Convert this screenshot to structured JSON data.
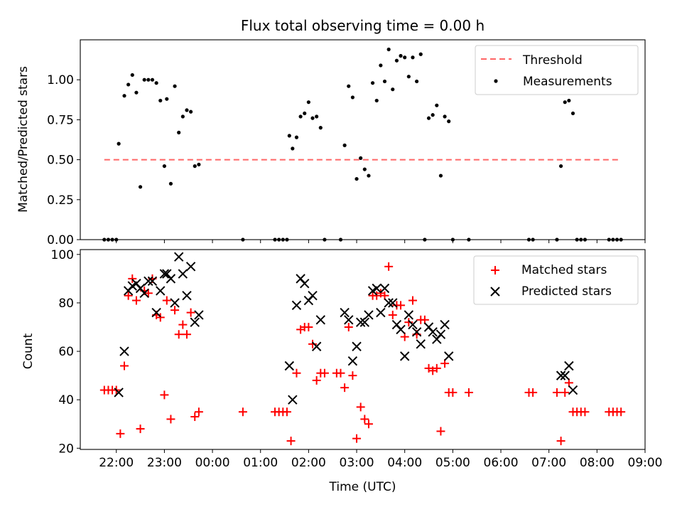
{
  "chart_data": [
    {
      "type": "scatter",
      "title": "Flux total observing time = 0.00 h",
      "xlabel": "",
      "ylabel": "Matched/Predicted stars",
      "xlim": [
        "21:15",
        "09:00"
      ],
      "ylim": [
        0,
        1.25
      ],
      "yticks": [
        "0.00",
        "0.25",
        "0.50",
        "0.75",
        "1.00"
      ],
      "yticks_values": [
        0,
        0.25,
        0.5,
        0.75,
        1.0
      ],
      "grid": false,
      "legend": "top-right",
      "threshold": {
        "name": "Threshold",
        "y": 0.5,
        "x_start": "21:45",
        "x_end": "08:30",
        "color": "#ff6666"
      },
      "series": [
        {
          "name": "Measurements",
          "color": "#000000",
          "points": [
            [
              "21:45",
              0
            ],
            [
              "21:50",
              0
            ],
            [
              "21:55",
              0
            ],
            [
              "22:00",
              0
            ],
            [
              "22:03",
              0.6
            ],
            [
              "22:10",
              0.9
            ],
            [
              "22:15",
              0.97
            ],
            [
              "22:20",
              1.03
            ],
            [
              "22:25",
              0.92
            ],
            [
              "22:30",
              0.33
            ],
            [
              "22:35",
              1.0
            ],
            [
              "22:40",
              1.0
            ],
            [
              "22:45",
              1.0
            ],
            [
              "22:50",
              0.98
            ],
            [
              "22:55",
              0.87
            ],
            [
              "23:00",
              0.46
            ],
            [
              "23:03",
              0.88
            ],
            [
              "23:08",
              0.35
            ],
            [
              "23:13",
              0.96
            ],
            [
              "23:18",
              0.67
            ],
            [
              "23:23",
              0.77
            ],
            [
              "23:28",
              0.81
            ],
            [
              "23:33",
              0.8
            ],
            [
              "23:38",
              0.46
            ],
            [
              "23:43",
              0.47
            ],
            [
              "00:38",
              0
            ],
            [
              "01:18",
              0
            ],
            [
              "01:23",
              0
            ],
            [
              "01:28",
              0
            ],
            [
              "01:33",
              0
            ],
            [
              "01:36",
              0.65
            ],
            [
              "01:40",
              0.57
            ],
            [
              "01:45",
              0.64
            ],
            [
              "01:50",
              0.77
            ],
            [
              "01:55",
              0.79
            ],
            [
              "02:00",
              0.86
            ],
            [
              "02:05",
              0.76
            ],
            [
              "02:10",
              0.77
            ],
            [
              "02:15",
              0.7
            ],
            [
              "02:20",
              0
            ],
            [
              "02:40",
              0
            ],
            [
              "02:45",
              0.59
            ],
            [
              "02:50",
              0.96
            ],
            [
              "02:55",
              0.89
            ],
            [
              "03:00",
              0.38
            ],
            [
              "03:05",
              0.51
            ],
            [
              "03:10",
              0.44
            ],
            [
              "03:15",
              0.4
            ],
            [
              "03:20",
              0.98
            ],
            [
              "03:25",
              0.87
            ],
            [
              "03:30",
              1.09
            ],
            [
              "03:35",
              0.99
            ],
            [
              "03:40",
              1.19
            ],
            [
              "03:45",
              0.94
            ],
            [
              "03:50",
              1.12
            ],
            [
              "03:55",
              1.15
            ],
            [
              "04:00",
              1.14
            ],
            [
              "04:05",
              1.02
            ],
            [
              "04:10",
              1.14
            ],
            [
              "04:15",
              0.99
            ],
            [
              "04:20",
              1.16
            ],
            [
              "04:25",
              0
            ],
            [
              "04:30",
              0.76
            ],
            [
              "04:35",
              0.78
            ],
            [
              "04:40",
              0.84
            ],
            [
              "04:45",
              0.4
            ],
            [
              "04:50",
              0.77
            ],
            [
              "04:55",
              0.74
            ],
            [
              "05:00",
              0
            ],
            [
              "05:20",
              0
            ],
            [
              "06:35",
              0
            ],
            [
              "06:40",
              0
            ],
            [
              "07:10",
              0
            ],
            [
              "07:15",
              0.46
            ],
            [
              "07:20",
              0.86
            ],
            [
              "07:25",
              0.87
            ],
            [
              "07:30",
              0.79
            ],
            [
              "07:35",
              0
            ],
            [
              "07:40",
              0
            ],
            [
              "07:45",
              0
            ],
            [
              "08:15",
              0
            ],
            [
              "08:20",
              0
            ],
            [
              "08:25",
              0
            ],
            [
              "08:30",
              0
            ]
          ]
        }
      ]
    },
    {
      "type": "scatter",
      "title": "",
      "xlabel": "Time (UTC)",
      "ylabel": "Count",
      "xlim": [
        "21:15",
        "09:00"
      ],
      "ylim": [
        19.5,
        102
      ],
      "yticks": [
        "20",
        "40",
        "60",
        "80",
        "100"
      ],
      "yticks_values": [
        20,
        40,
        60,
        80,
        100
      ],
      "xticks": [
        "22:00",
        "23:00",
        "00:00",
        "01:00",
        "02:00",
        "03:00",
        "04:00",
        "05:00",
        "06:00",
        "07:00",
        "08:00",
        "09:00"
      ],
      "grid": false,
      "legend": "top-right",
      "series": [
        {
          "name": "Matched stars",
          "color": "#ff0000",
          "marker": "plus",
          "points": [
            [
              "21:45",
              44
            ],
            [
              "21:50",
              44
            ],
            [
              "21:55",
              44
            ],
            [
              "22:00",
              44
            ],
            [
              "22:05",
              26
            ],
            [
              "22:10",
              54
            ],
            [
              "22:15",
              83
            ],
            [
              "22:20",
              90
            ],
            [
              "22:25",
              81
            ],
            [
              "22:30",
              28
            ],
            [
              "22:35",
              85
            ],
            [
              "22:40",
              84
            ],
            [
              "22:45",
              90
            ],
            [
              "22:50",
              75
            ],
            [
              "22:55",
              74
            ],
            [
              "23:00",
              42
            ],
            [
              "23:03",
              81
            ],
            [
              "23:08",
              32
            ],
            [
              "23:13",
              77
            ],
            [
              "23:18",
              67
            ],
            [
              "23:23",
              71
            ],
            [
              "23:28",
              67
            ],
            [
              "23:33",
              76
            ],
            [
              "23:38",
              33
            ],
            [
              "23:43",
              35
            ],
            [
              "00:38",
              35
            ],
            [
              "01:18",
              35
            ],
            [
              "01:23",
              35
            ],
            [
              "01:28",
              35
            ],
            [
              "01:33",
              35
            ],
            [
              "01:38",
              23
            ],
            [
              "01:45",
              51
            ],
            [
              "01:50",
              69
            ],
            [
              "01:55",
              70
            ],
            [
              "02:00",
              70
            ],
            [
              "02:05",
              63
            ],
            [
              "02:10",
              48
            ],
            [
              "02:15",
              51
            ],
            [
              "02:20",
              51
            ],
            [
              "02:35",
              51
            ],
            [
              "02:40",
              51
            ],
            [
              "02:45",
              45
            ],
            [
              "02:50",
              70
            ],
            [
              "02:55",
              50
            ],
            [
              "03:00",
              24
            ],
            [
              "03:05",
              37
            ],
            [
              "03:10",
              32
            ],
            [
              "03:15",
              30
            ],
            [
              "03:20",
              83
            ],
            [
              "03:25",
              83
            ],
            [
              "03:30",
              84
            ],
            [
              "03:35",
              83
            ],
            [
              "03:40",
              95
            ],
            [
              "03:45",
              75
            ],
            [
              "03:50",
              79
            ],
            [
              "03:55",
              79
            ],
            [
              "04:00",
              66
            ],
            [
              "04:05",
              72
            ],
            [
              "04:10",
              81
            ],
            [
              "04:15",
              67
            ],
            [
              "04:20",
              73
            ],
            [
              "04:25",
              73
            ],
            [
              "04:30",
              53
            ],
            [
              "04:35",
              52
            ],
            [
              "04:40",
              53
            ],
            [
              "04:45",
              27
            ],
            [
              "04:50",
              55
            ],
            [
              "04:55",
              43
            ],
            [
              "05:00",
              43
            ],
            [
              "05:20",
              43
            ],
            [
              "06:35",
              43
            ],
            [
              "06:40",
              43
            ],
            [
              "07:10",
              43
            ],
            [
              "07:15",
              23
            ],
            [
              "07:20",
              43
            ],
            [
              "07:25",
              47
            ],
            [
              "07:30",
              35
            ],
            [
              "07:35",
              35
            ],
            [
              "07:40",
              35
            ],
            [
              "07:45",
              35
            ],
            [
              "08:15",
              35
            ],
            [
              "08:20",
              35
            ],
            [
              "08:25",
              35
            ],
            [
              "08:30",
              35
            ]
          ]
        },
        {
          "name": "Predicted stars",
          "color": "#000000",
          "marker": "cross",
          "points": [
            [
              "22:03",
              43
            ],
            [
              "22:10",
              60
            ],
            [
              "22:15",
              85
            ],
            [
              "22:20",
              87
            ],
            [
              "22:25",
              88
            ],
            [
              "22:30",
              86
            ],
            [
              "22:35",
              84
            ],
            [
              "22:40",
              89
            ],
            [
              "22:45",
              89
            ],
            [
              "22:50",
              76
            ],
            [
              "22:55",
              85
            ],
            [
              "23:00",
              92
            ],
            [
              "23:03",
              92
            ],
            [
              "23:08",
              90
            ],
            [
              "23:13",
              80
            ],
            [
              "23:18",
              99
            ],
            [
              "23:23",
              92
            ],
            [
              "23:28",
              83
            ],
            [
              "23:33",
              95
            ],
            [
              "23:38",
              72
            ],
            [
              "23:43",
              75
            ],
            [
              "01:36",
              54
            ],
            [
              "01:40",
              40
            ],
            [
              "01:45",
              79
            ],
            [
              "01:50",
              90
            ],
            [
              "01:55",
              88
            ],
            [
              "02:00",
              81
            ],
            [
              "02:05",
              83
            ],
            [
              "02:10",
              62
            ],
            [
              "02:15",
              73
            ],
            [
              "02:45",
              76
            ],
            [
              "02:50",
              73
            ],
            [
              "02:55",
              56
            ],
            [
              "03:00",
              62
            ],
            [
              "03:05",
              72
            ],
            [
              "03:10",
              72
            ],
            [
              "03:15",
              75
            ],
            [
              "03:20",
              85
            ],
            [
              "03:25",
              86
            ],
            [
              "03:30",
              76
            ],
            [
              "03:35",
              86
            ],
            [
              "03:40",
              80
            ],
            [
              "03:45",
              80
            ],
            [
              "03:50",
              71
            ],
            [
              "03:55",
              69
            ],
            [
              "04:00",
              58
            ],
            [
              "04:05",
              75
            ],
            [
              "04:10",
              71
            ],
            [
              "04:15",
              68
            ],
            [
              "04:20",
              63
            ],
            [
              "04:30",
              70
            ],
            [
              "04:35",
              68
            ],
            [
              "04:40",
              65
            ],
            [
              "04:45",
              67
            ],
            [
              "04:50",
              71
            ],
            [
              "04:55",
              58
            ],
            [
              "07:15",
              50
            ],
            [
              "07:20",
              50
            ],
            [
              "07:25",
              54
            ],
            [
              "07:30",
              44
            ]
          ]
        }
      ]
    }
  ]
}
